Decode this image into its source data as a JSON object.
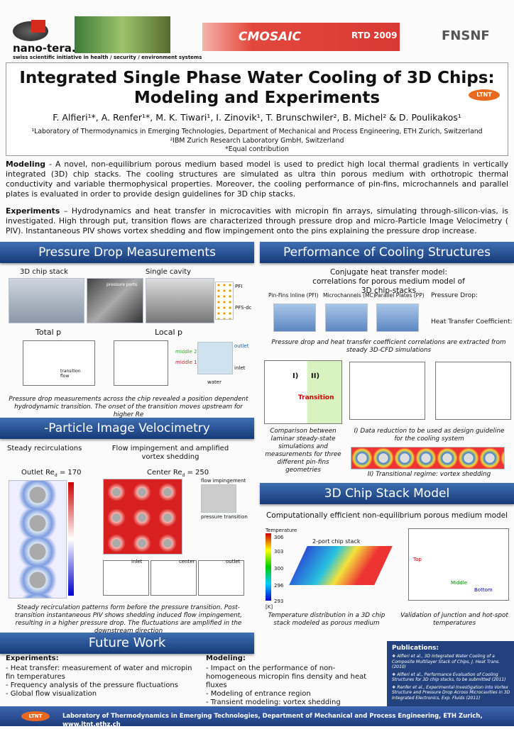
{
  "header": {
    "logo": "nano-tera.ch",
    "tagline": "swiss scientific initiative in health / security / environment systems",
    "project": "CMOSAIC",
    "rtd": "RTD 2009",
    "funder": "FNSNF"
  },
  "title": {
    "line1": "Integrated Single Phase Water Cooling of 3D Chips:",
    "line2": "Modeling and Experiments",
    "badge": "LTNT"
  },
  "authors": "F. Alfieri¹*, A. Renfer¹*, M. K. Tiwari¹, I. Zinovik¹, T. Brunschwiler², B. Michel² & D. Poulikakos¹",
  "affiliations": [
    "¹Laboratory of Thermodynamics in Emerging Technologies, Department of Mechanical and Process Engineering,  ETH Zurich, Switzerland",
    "²IBM Zurich Research Laboratory GmbH,  Switzerland",
    "*Equal contribution"
  ],
  "intro": [
    {
      "lead": "Modeling",
      "text": " - A novel, non-equilibrium porous medium based model is used to predict high local thermal gradients in vertically integrated (3D) chip stacks. The cooling structures are simulated as ultra thin porous medium with orthotropic thermal conductivity and variable thermophysical properties. Moreover, the cooling performance of pin-fins, microchannels and parallel plates is evaluated in order to provide design guidelines for 3D chip stacks."
    },
    {
      "lead": "Experiments",
      "text": " – Hydrodynamics and heat transfer in microcavities with micropin fin arrays, simulating through-silicon-vias, is investigated. High through put, transition flows are characterized through pressure drop and micro-Particle Image Velocimetry (  PIV).  Instantaneous    PIV shows vortex shedding and flow impingement onto the pins explaining the pressure drop increase."
    }
  ],
  "pressure_drop": {
    "heading": "Pressure Drop Measurements",
    "labels": [
      "3D chip stack",
      "Single cavity",
      "Total    p",
      "Local    p"
    ],
    "figure_labels": [
      "pressure ports",
      "PFI",
      "PFS-dc",
      "outlet",
      "inlet",
      "middle 2",
      "middle 1",
      "water",
      "transition flow"
    ],
    "caption": "Pressure drop measurements across the chip revealed a position dependent hydrodynamic transition. The onset of the transition moves upstream for higher Re"
  },
  "piv": {
    "heading": "-Particle Image Velocimetry",
    "labels": [
      "Steady recirculations",
      "Flow impingement and amplified vortex shedding",
      "Outlet Re",
      "Center Re"
    ],
    "re_values": [
      "= 170",
      "= 250"
    ],
    "figure_labels": [
      "flow impingement",
      "pressure transition",
      "inlet",
      "center",
      "outlet"
    ],
    "caption": "Steady recirculation patterns form before the pressure transition. Post-transition instantaneous    PIV shows shedding induced flow impingement, resulting in a higher pressure drop. The fluctuations are amplified in the downstream direction"
  },
  "performance": {
    "heading": "Performance of Cooling Structures",
    "subtitle": "Conjugate heat transfer model: correlations for porous medium model of 3D chip-stacks",
    "geometries": [
      "Pin-Fins Inline (PFI)",
      "Microchannels (MC)",
      "Parallel Plates (PP)"
    ],
    "equations": [
      "Pressure Drop:",
      "Heat Transfer Coefficient:"
    ],
    "caption": "Pressure drop and heat transfer coefficient correlations are extracted from steady 3D-CFD simulations",
    "figure_labels": [
      "I)",
      "II)",
      "Transition"
    ],
    "caption_left": "Comparison between laminar steady-state simulations and measurements for three different pin-fins geometries",
    "caption_right": "I) Data reduction to be used as design guideline for the cooling system",
    "caption_shedding": "II) Transitional regime: vortex shedding"
  },
  "chip_stack": {
    "heading": "3D Chip Stack Model",
    "subtitle": "Computationally efficient non-equilibrium porous medium model",
    "figure_labels": [
      "Temperature",
      "2-port chip stack",
      "Top",
      "Middle",
      "Bottom"
    ],
    "colorbar": [
      "306",
      "303",
      "300",
      "296",
      "293",
      "[K]"
    ],
    "caption_left": "Temperature distribution in a 3D chip stack modeled as porous medium",
    "caption_right": "Validation of junction and hot-spot temperatures"
  },
  "future": {
    "heading": "Future Work",
    "experiments": {
      "title": "Experiments:",
      "items": [
        "- Heat transfer: measurement of water and micropin fin temperatures",
        "- Frequency analysis of the pressure fluctuations",
        "- Global flow visualization"
      ]
    },
    "modeling": {
      "title": "Modeling:",
      "items": [
        "- Impact on the performance of non-homogeneous micropin fins density and heat fluxes",
        "- Modeling of entrance region",
        "- Transient modeling: vortex shedding"
      ]
    }
  },
  "publications": {
    "title": "Publications:",
    "items": [
      "❖ Alfieri et al., 3D Integrated Water Cooling of a Composite Multilayer Stack of Chips, J. Heat Trans. (2010)",
      "❖ Alfieri et al., Performance Evaluation of Cooling Structures for 3D chip stacks, to be submitted (2011)",
      "❖ Renfer et al., Experimental Investigation into Vortex Structure and Pressure Drop Across Microcavities in 3D Integrated Electronics, Exp. Fluids (2011)"
    ]
  },
  "footer": {
    "badge": "LTNT",
    "text": "Laboratory of Thermodynamics in Emerging Technologies, Department of Mechanical and Process Engineering, ETH Zurich, www.ltnt.ethz.ch"
  }
}
